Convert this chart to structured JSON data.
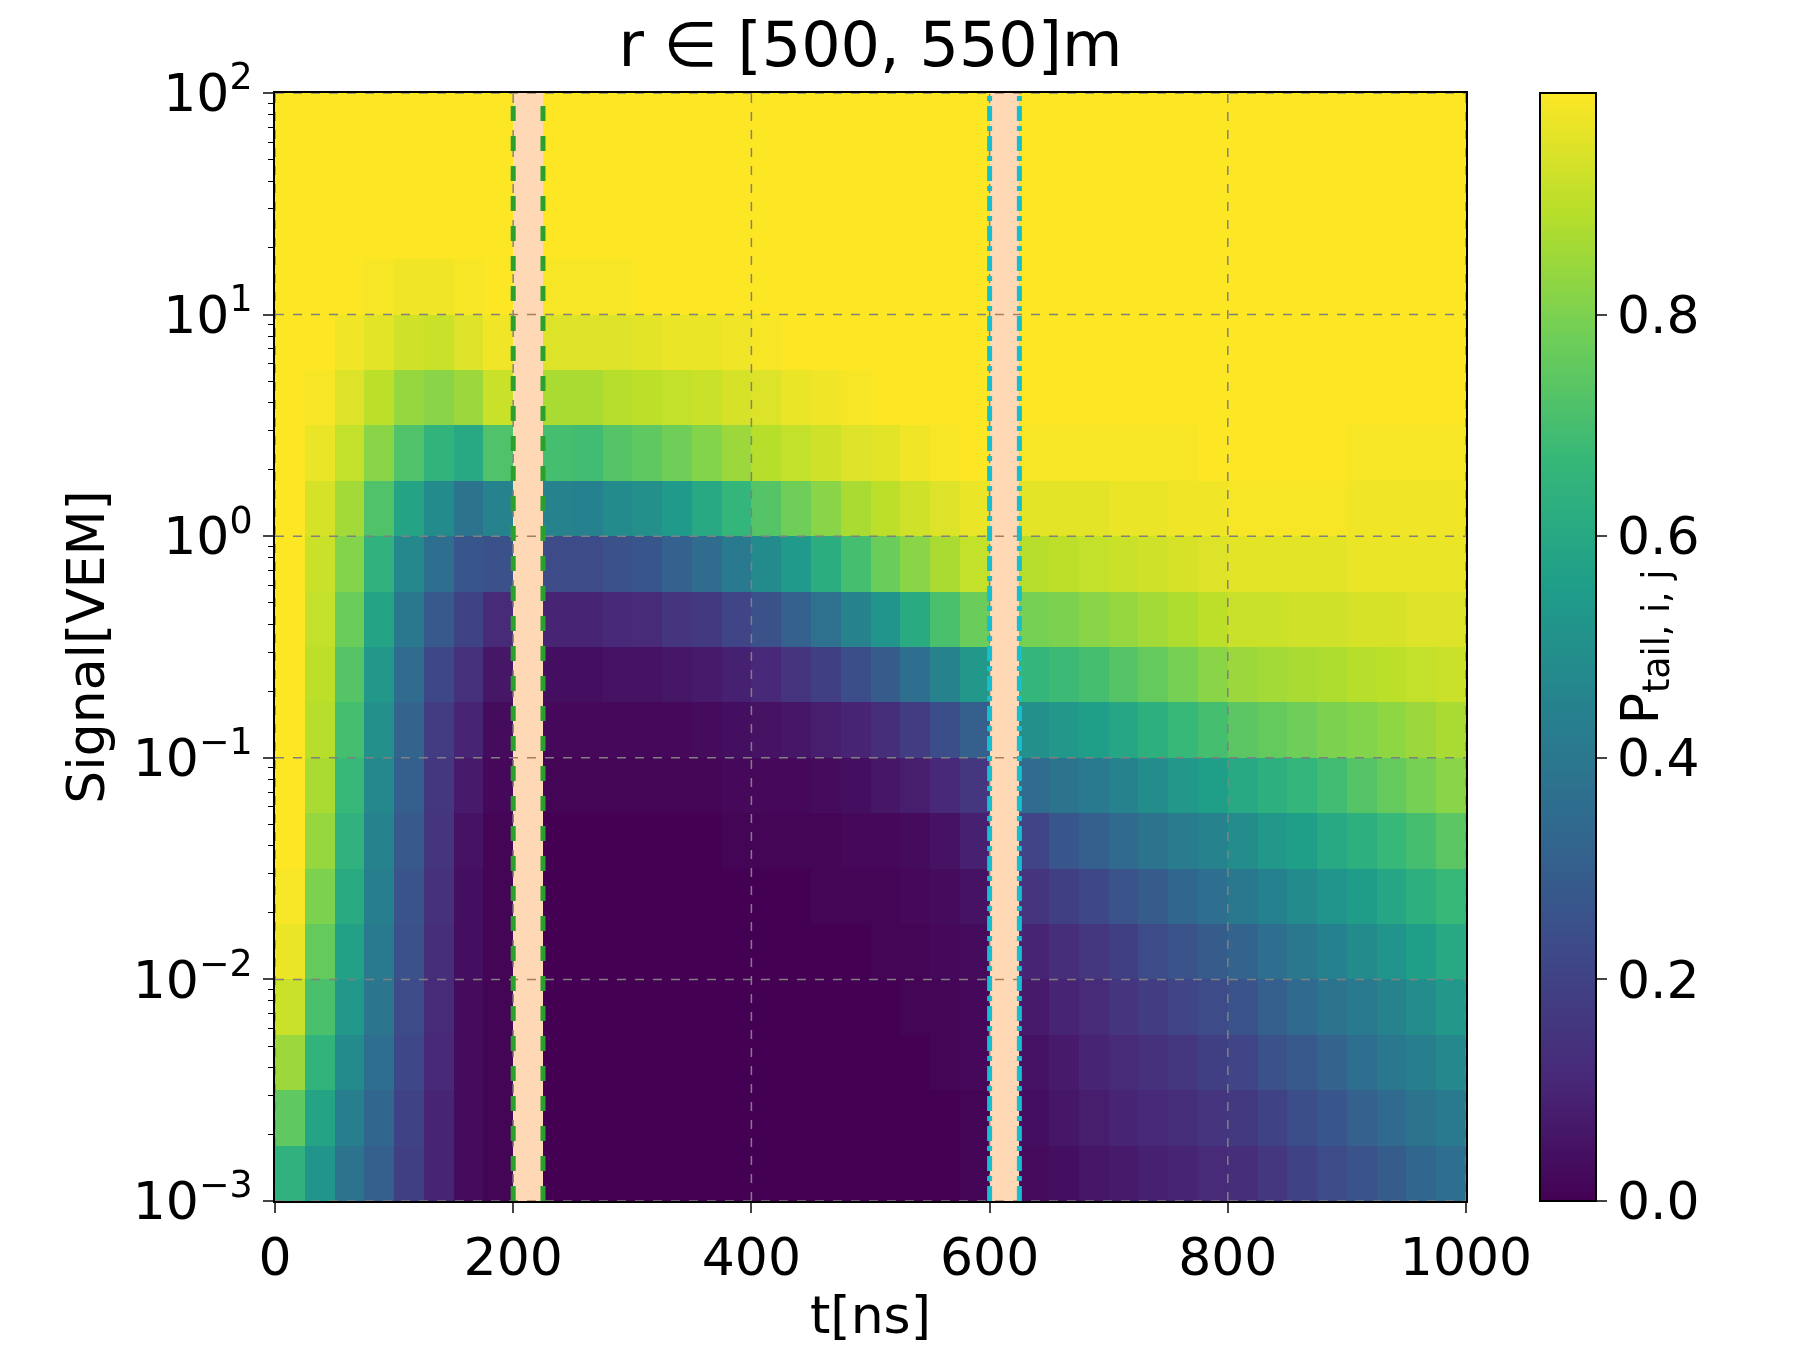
{
  "chart_data": {
    "type": "heatmap",
    "title": "r ∈ [500, 550]m",
    "xlabel": "t[ns]",
    "ylabel": "Signal[VEM]",
    "clabel": "P$_{tail, i, j}$",
    "xlim": [
      0,
      1000
    ],
    "xticks": [
      0,
      200,
      400,
      600,
      800,
      1000
    ],
    "ylim": [
      0.001,
      100
    ],
    "log": "y",
    "yticks": [
      {
        "value": 0.001,
        "label": "10$^{−3}$"
      },
      {
        "value": 0.01,
        "label": "10$^{−2}$"
      },
      {
        "value": 0.1,
        "label": "10$^{−1}$"
      },
      {
        "value": 1,
        "label": "10$^{0}$"
      },
      {
        "value": 10,
        "label": "10$^{1}$"
      },
      {
        "value": 100,
        "label": "10$^{2}$"
      }
    ],
    "clim": [
      0,
      1
    ],
    "cticks": [
      {
        "value": 0,
        "label": "0.0"
      },
      {
        "value": 0.2,
        "label": "0.2"
      },
      {
        "value": 0.4,
        "label": "0.4"
      },
      {
        "value": 0.6,
        "label": "0.6"
      },
      {
        "value": 0.8,
        "label": "0.8"
      }
    ],
    "grid": true,
    "bands": [
      {
        "axis": "x",
        "from": 200,
        "to": 225,
        "color": "#ff7f0e"
      },
      {
        "axis": "x",
        "from": 600,
        "to": 625,
        "color": "#ff7f0e"
      }
    ],
    "ref_lines": [
      {
        "axis": "x",
        "value": 200,
        "color": "#2ca02c",
        "line_style": "dashed"
      },
      {
        "axis": "x",
        "value": 225,
        "color": "#2ca02c",
        "line_style": "dashed"
      },
      {
        "axis": "x",
        "value": 600,
        "color": "#17becf",
        "line_style": "dashdot"
      },
      {
        "axis": "x",
        "value": 625,
        "color": "#17becf",
        "line_style": "dashdot"
      }
    ],
    "cells": [
      [
        1,
        1,
        1,
        1,
        1,
        1,
        1,
        1,
        null,
        1,
        1,
        1,
        1,
        1,
        1,
        1,
        1,
        1,
        1,
        1,
        1,
        1,
        1,
        1,
        null,
        1,
        1,
        1,
        1,
        1,
        1,
        1,
        1,
        1,
        1,
        1,
        1,
        1,
        1,
        1
      ],
      [
        1,
        1,
        1,
        1,
        1,
        1,
        1,
        1,
        null,
        1,
        1,
        1,
        1,
        1,
        1,
        1,
        1,
        1,
        1,
        1,
        1,
        1,
        1,
        1,
        null,
        1,
        1,
        1,
        1,
        1,
        1,
        1,
        1,
        1,
        1,
        1,
        1,
        1,
        1,
        1
      ],
      [
        1,
        1,
        1,
        1,
        1,
        1,
        1,
        1,
        null,
        1,
        1,
        1,
        1,
        1,
        1,
        1,
        1,
        1,
        1,
        1,
        1,
        1,
        1,
        1,
        null,
        1,
        1,
        1,
        1,
        1,
        1,
        1,
        1,
        1,
        1,
        1,
        1,
        1,
        1,
        1
      ],
      [
        1,
        1,
        1,
        0.99,
        0.98,
        0.98,
        0.99,
        1,
        null,
        0.99,
        0.99,
        0.99,
        1,
        1,
        1,
        1,
        1,
        1,
        1,
        1,
        1,
        1,
        1,
        1,
        null,
        1,
        1,
        1,
        1,
        1,
        1,
        1,
        1,
        1,
        1,
        1,
        1,
        1,
        1,
        1
      ],
      [
        1,
        1,
        0.98,
        0.96,
        0.93,
        0.92,
        0.95,
        0.98,
        null,
        0.95,
        0.95,
        0.95,
        0.96,
        0.97,
        0.97,
        0.98,
        0.99,
        1,
        1,
        1,
        1,
        1,
        1,
        1,
        null,
        1,
        1,
        1,
        1,
        1,
        1,
        1,
        1,
        1,
        1,
        1,
        1,
        1,
        1,
        1
      ],
      [
        1,
        0.99,
        0.95,
        0.9,
        0.84,
        0.82,
        0.85,
        0.92,
        null,
        0.87,
        0.87,
        0.89,
        0.9,
        0.91,
        0.92,
        0.94,
        0.95,
        0.97,
        0.98,
        0.99,
        1,
        1,
        1,
        1,
        null,
        1,
        1,
        1,
        1,
        1,
        1,
        1,
        1,
        1,
        1,
        1,
        1,
        1,
        1,
        1
      ],
      [
        1,
        0.97,
        0.91,
        0.82,
        0.72,
        0.65,
        0.6,
        0.72,
        null,
        0.7,
        0.69,
        0.73,
        0.75,
        0.78,
        0.81,
        0.85,
        0.89,
        0.91,
        0.93,
        0.95,
        0.96,
        0.98,
        0.99,
        1,
        null,
        0.99,
        0.99,
        0.99,
        0.99,
        0.99,
        0.99,
        1,
        1,
        1,
        1,
        1,
        0.99,
        0.99,
        0.99,
        0.99
      ],
      [
        1,
        0.94,
        0.86,
        0.72,
        0.58,
        0.48,
        0.38,
        0.45,
        null,
        0.45,
        0.44,
        0.48,
        0.5,
        0.54,
        0.6,
        0.66,
        0.73,
        0.78,
        0.82,
        0.87,
        0.9,
        0.93,
        0.95,
        0.97,
        null,
        0.96,
        0.96,
        0.96,
        0.97,
        0.97,
        0.98,
        0.98,
        0.99,
        0.99,
        0.99,
        0.99,
        0.98,
        0.98,
        0.98,
        0.98
      ],
      [
        1,
        0.92,
        0.81,
        0.64,
        0.47,
        0.36,
        0.27,
        0.25,
        null,
        0.23,
        0.23,
        0.25,
        0.27,
        0.31,
        0.35,
        0.41,
        0.48,
        0.54,
        0.62,
        0.7,
        0.77,
        0.82,
        0.87,
        0.91,
        null,
        0.89,
        0.9,
        0.91,
        0.92,
        0.93,
        0.94,
        0.95,
        0.96,
        0.96,
        0.96,
        0.96,
        0.97,
        0.97,
        0.97,
        0.97
      ],
      [
        1,
        0.91,
        0.77,
        0.58,
        0.4,
        0.28,
        0.2,
        0.12,
        null,
        0.1,
        0.1,
        0.11,
        0.12,
        0.15,
        0.17,
        0.21,
        0.25,
        0.31,
        0.37,
        0.45,
        0.52,
        0.61,
        0.71,
        0.77,
        null,
        0.79,
        0.8,
        0.82,
        0.84,
        0.86,
        0.88,
        0.9,
        0.92,
        0.92,
        0.93,
        0.93,
        0.94,
        0.94,
        0.95,
        0.95
      ],
      [
        1,
        0.9,
        0.73,
        0.53,
        0.35,
        0.22,
        0.14,
        0.06,
        null,
        0.04,
        0.04,
        0.05,
        0.05,
        0.06,
        0.07,
        0.09,
        0.11,
        0.15,
        0.19,
        0.24,
        0.29,
        0.36,
        0.45,
        0.53,
        null,
        0.66,
        0.68,
        0.7,
        0.73,
        0.76,
        0.79,
        0.82,
        0.85,
        0.86,
        0.87,
        0.88,
        0.89,
        0.9,
        0.91,
        0.92
      ],
      [
        1,
        0.89,
        0.7,
        0.5,
        0.32,
        0.18,
        0.1,
        0.03,
        null,
        0.02,
        0.02,
        0.02,
        0.02,
        0.02,
        0.03,
        0.04,
        0.05,
        0.06,
        0.08,
        0.1,
        0.13,
        0.18,
        0.24,
        0.3,
        null,
        0.5,
        0.53,
        0.56,
        0.59,
        0.63,
        0.67,
        0.7,
        0.74,
        0.76,
        0.78,
        0.8,
        0.81,
        0.83,
        0.85,
        0.87
      ],
      [
        1,
        0.87,
        0.67,
        0.47,
        0.3,
        0.16,
        0.07,
        0.02,
        null,
        0.01,
        0.01,
        0.01,
        0.01,
        0.01,
        0.01,
        0.02,
        0.02,
        0.02,
        0.03,
        0.04,
        0.06,
        0.08,
        0.11,
        0.16,
        null,
        0.35,
        0.38,
        0.41,
        0.45,
        0.49,
        0.53,
        0.56,
        0.6,
        0.63,
        0.66,
        0.69,
        0.73,
        0.76,
        0.79,
        0.82
      ],
      [
        1,
        0.84,
        0.64,
        0.45,
        0.28,
        0.15,
        0.05,
        0.01,
        null,
        0,
        0,
        0,
        0,
        0,
        0,
        0.01,
        0.01,
        0.01,
        0.01,
        0.02,
        0.02,
        0.03,
        0.05,
        0.09,
        null,
        0.21,
        0.27,
        0.3,
        0.34,
        0.38,
        0.42,
        0.45,
        0.49,
        0.53,
        0.56,
        0.6,
        0.63,
        0.67,
        0.7,
        0.74
      ],
      [
        0.99,
        0.8,
        0.61,
        0.43,
        0.26,
        0.14,
        0.04,
        0.01,
        null,
        0,
        0,
        0,
        0,
        0,
        0,
        0,
        0,
        0,
        0.01,
        0.01,
        0.01,
        0.02,
        0.03,
        0.05,
        null,
        0.15,
        0.19,
        0.22,
        0.26,
        0.29,
        0.33,
        0.36,
        0.4,
        0.44,
        0.48,
        0.52,
        0.55,
        0.59,
        0.63,
        0.67
      ],
      [
        0.97,
        0.76,
        0.57,
        0.41,
        0.25,
        0.13,
        0.04,
        0.01,
        null,
        0,
        0,
        0,
        0,
        0,
        0,
        0,
        0,
        0,
        0,
        0,
        0.01,
        0.01,
        0.02,
        0.03,
        null,
        0.1,
        0.13,
        0.16,
        0.19,
        0.23,
        0.26,
        0.29,
        0.32,
        0.36,
        0.4,
        0.44,
        0.48,
        0.52,
        0.56,
        0.6
      ],
      [
        0.92,
        0.71,
        0.53,
        0.39,
        0.23,
        0.12,
        0.03,
        0.01,
        null,
        0,
        0,
        0,
        0,
        0,
        0,
        0,
        0,
        0,
        0,
        0,
        0,
        0.01,
        0.01,
        0.02,
        null,
        0.07,
        0.1,
        0.12,
        0.15,
        0.18,
        0.21,
        0.23,
        0.26,
        0.3,
        0.34,
        0.38,
        0.41,
        0.45,
        0.49,
        0.53
      ],
      [
        0.85,
        0.65,
        0.48,
        0.36,
        0.22,
        0.11,
        0.03,
        0.01,
        null,
        0,
        0,
        0,
        0,
        0,
        0,
        0,
        0,
        0,
        0,
        0,
        0,
        0,
        0.01,
        0.02,
        null,
        0.05,
        0.07,
        0.1,
        0.12,
        0.14,
        0.16,
        0.19,
        0.21,
        0.25,
        0.28,
        0.32,
        0.36,
        0.4,
        0.43,
        0.47
      ],
      [
        0.75,
        0.58,
        0.43,
        0.33,
        0.2,
        0.1,
        0.03,
        0.01,
        null,
        0,
        0,
        0,
        0,
        0,
        0,
        0,
        0,
        0,
        0,
        0,
        0,
        0,
        0,
        0.01,
        null,
        0.04,
        0.06,
        0.08,
        0.1,
        0.11,
        0.13,
        0.15,
        0.17,
        0.2,
        0.24,
        0.27,
        0.31,
        0.34,
        0.38,
        0.41
      ],
      [
        0.64,
        0.52,
        0.38,
        0.3,
        0.19,
        0.1,
        0.03,
        0.01,
        null,
        0,
        0,
        0,
        0,
        0,
        0,
        0,
        0,
        0,
        0,
        0,
        0,
        0,
        0,
        0.01,
        null,
        0.03,
        0.04,
        0.06,
        0.07,
        0.09,
        0.1,
        0.12,
        0.13,
        0.16,
        0.2,
        0.23,
        0.26,
        0.29,
        0.33,
        0.36
      ]
    ]
  }
}
